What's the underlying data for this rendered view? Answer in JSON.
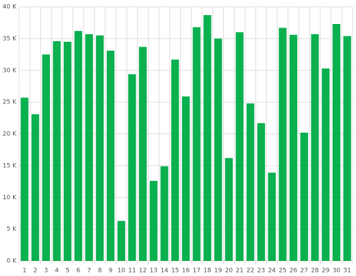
{
  "chart_data": {
    "type": "bar",
    "categories": [
      "1",
      "2",
      "3",
      "4",
      "5",
      "6",
      "7",
      "8",
      "9",
      "10",
      "11",
      "12",
      "13",
      "14",
      "15",
      "16",
      "17",
      "18",
      "19",
      "20",
      "21",
      "22",
      "23",
      "24",
      "25",
      "26",
      "27",
      "28",
      "29",
      "30",
      "31"
    ],
    "values": [
      25700,
      23100,
      32500,
      34600,
      34500,
      36200,
      35700,
      35500,
      33100,
      6300,
      29400,
      33700,
      12600,
      14900,
      31700,
      25900,
      36800,
      38700,
      35000,
      16200,
      36000,
      24800,
      21700,
      13900,
      36700,
      35600,
      20200,
      35700,
      30300,
      37300,
      35400
    ],
    "color": "#0bb04f",
    "ylim": [
      0,
      40000
    ],
    "yticks": [
      {
        "value": 0,
        "label": "0 K"
      },
      {
        "value": 5000,
        "label": "5 K"
      },
      {
        "value": 10000,
        "label": "10 K"
      },
      {
        "value": 15000,
        "label": "15 K"
      },
      {
        "value": 20000,
        "label": "20 K"
      },
      {
        "value": 25000,
        "label": "25 K"
      },
      {
        "value": 30000,
        "label": "30 K"
      },
      {
        "value": 35000,
        "label": "35 K"
      },
      {
        "value": 40000,
        "label": "40 K"
      }
    ],
    "grid": true
  }
}
